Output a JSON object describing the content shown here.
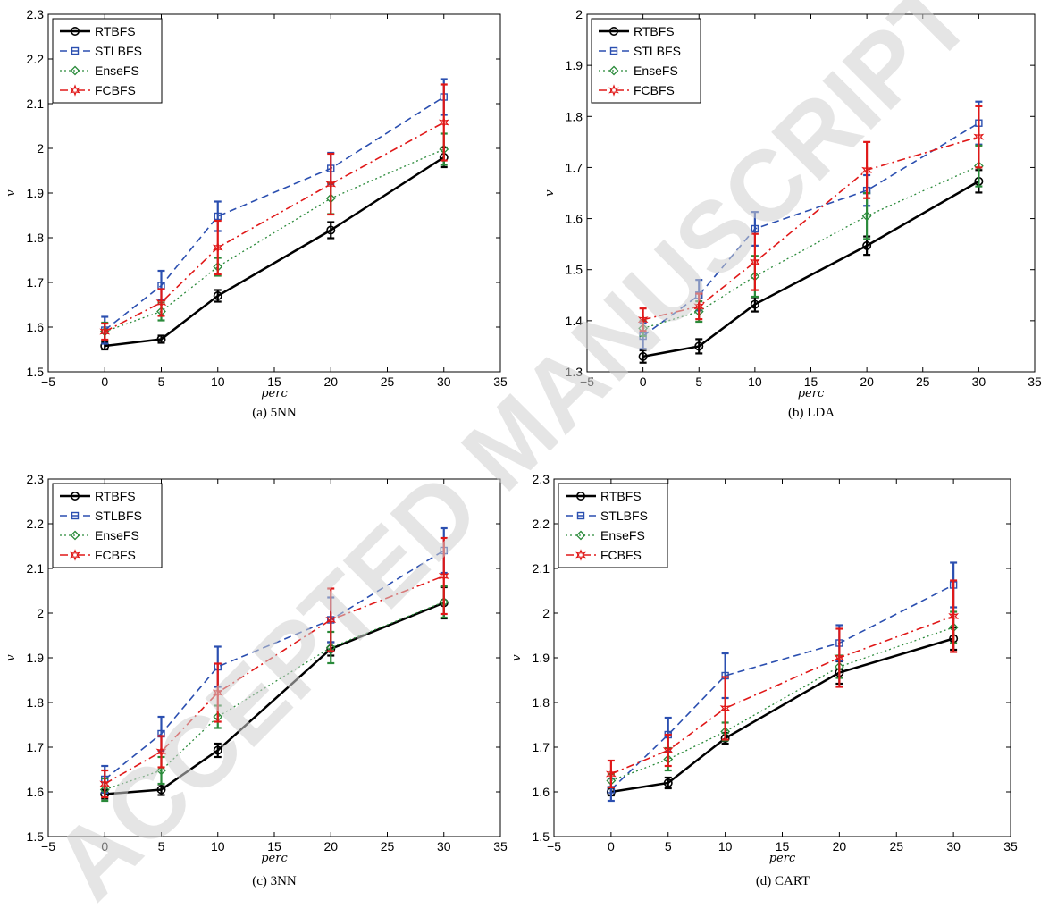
{
  "watermark": "ACCEPTED MANUSCRIPT",
  "styles": {
    "RTBFS": {
      "color": "#000000",
      "dash": "",
      "width": 2.5,
      "marker": "circle"
    },
    "STLBFS": {
      "color": "#2b4fb0",
      "dash": "8,5",
      "width": 1.6,
      "marker": "square"
    },
    "EnseFS": {
      "color": "#2a8a3a",
      "dash": "2,3",
      "width": 1.3,
      "marker": "diamond"
    },
    "FCBFS": {
      "color": "#e01818",
      "dash": "9,4,2,4",
      "width": 1.6,
      "marker": "star"
    }
  },
  "chart_data": [
    {
      "type": "line",
      "caption": "(a) 5NN",
      "xlabel": "perc",
      "ylabel": "v",
      "xlim": [
        -5,
        35
      ],
      "ylim": [
        1.5,
        2.3
      ],
      "xticks": [
        -5,
        0,
        5,
        10,
        15,
        20,
        25,
        30,
        35
      ],
      "yticks": [
        1.5,
        1.6,
        1.7,
        1.8,
        1.9,
        2,
        2.1,
        2.2,
        2.3
      ],
      "legend_position": "top-left",
      "x": [
        0,
        5,
        10,
        20,
        30
      ],
      "series": [
        {
          "name": "RTBFS",
          "values": [
            1.558,
            1.573,
            1.67,
            1.817,
            1.98
          ],
          "err": [
            0.008,
            0.008,
            0.013,
            0.018,
            0.022
          ]
        },
        {
          "name": "STLBFS",
          "values": [
            1.593,
            1.693,
            1.848,
            1.955,
            2.115
          ],
          "err": [
            0.03,
            0.033,
            0.033,
            0.035,
            0.04
          ]
        },
        {
          "name": "EnseFS",
          "values": [
            1.59,
            1.635,
            1.735,
            1.888,
            1.998
          ],
          "err": [
            0.02,
            0.02,
            0.02,
            0.035,
            0.035
          ]
        },
        {
          "name": "FCBFS",
          "values": [
            1.59,
            1.655,
            1.778,
            1.92,
            2.058
          ],
          "err": [
            0.018,
            0.03,
            0.06,
            0.068,
            0.085
          ]
        }
      ]
    },
    {
      "type": "line",
      "caption": "(b) LDA",
      "xlabel": "perc",
      "ylabel": "v",
      "xlim": [
        -5,
        35
      ],
      "ylim": [
        1.3,
        2
      ],
      "xticks": [
        -5,
        0,
        5,
        10,
        15,
        20,
        25,
        30,
        35
      ],
      "yticks": [
        1.3,
        1.4,
        1.5,
        1.6,
        1.7,
        1.8,
        1.9,
        2
      ],
      "legend_position": "top-left",
      "x": [
        0,
        5,
        10,
        20,
        30
      ],
      "series": [
        {
          "name": "RTBFS",
          "values": [
            1.33,
            1.35,
            1.432,
            1.547,
            1.673
          ],
          "err": [
            0.012,
            0.014,
            0.014,
            0.018,
            0.022
          ]
        },
        {
          "name": "STLBFS",
          "values": [
            1.37,
            1.45,
            1.58,
            1.655,
            1.787
          ],
          "err": [
            0.025,
            0.03,
            0.033,
            0.03,
            0.042
          ]
        },
        {
          "name": "EnseFS",
          "values": [
            1.385,
            1.418,
            1.487,
            1.605,
            1.703
          ],
          "err": [
            0.015,
            0.02,
            0.04,
            0.045,
            0.04
          ]
        },
        {
          "name": "FCBFS",
          "values": [
            1.402,
            1.428,
            1.515,
            1.695,
            1.76
          ],
          "err": [
            0.022,
            0.025,
            0.055,
            0.055,
            0.06
          ]
        }
      ]
    },
    {
      "type": "line",
      "caption": "(c) 3NN",
      "xlabel": "perc",
      "ylabel": "v",
      "xlim": [
        -5,
        35
      ],
      "ylim": [
        1.5,
        2.3
      ],
      "xticks": [
        -5,
        0,
        5,
        10,
        15,
        20,
        25,
        30,
        35
      ],
      "yticks": [
        1.5,
        1.6,
        1.7,
        1.8,
        1.9,
        2,
        2.1,
        2.2,
        2.3
      ],
      "legend_position": "top-left",
      "x": [
        0,
        5,
        10,
        20,
        30
      ],
      "series": [
        {
          "name": "RTBFS",
          "values": [
            1.595,
            1.605,
            1.693,
            1.92,
            2.023
          ],
          "err": [
            0.01,
            0.012,
            0.015,
            0.015,
            0.035
          ]
        },
        {
          "name": "STLBFS",
          "values": [
            1.628,
            1.73,
            1.88,
            1.985,
            2.14
          ],
          "err": [
            0.03,
            0.038,
            0.045,
            0.05,
            0.05
          ]
        },
        {
          "name": "EnseFS",
          "values": [
            1.605,
            1.648,
            1.768,
            1.923,
            2.025
          ],
          "err": [
            0.025,
            0.03,
            0.025,
            0.035,
            0.035
          ]
        },
        {
          "name": "FCBFS",
          "values": [
            1.618,
            1.69,
            1.822,
            1.985,
            2.083
          ],
          "err": [
            0.03,
            0.035,
            0.065,
            0.07,
            0.085
          ]
        }
      ]
    },
    {
      "type": "line",
      "caption": "(d) CART",
      "xlabel": "perc",
      "ylabel": "v",
      "xlim": [
        -5,
        35
      ],
      "ylim": [
        1.5,
        2.3
      ],
      "xticks": [
        -5,
        0,
        5,
        10,
        15,
        20,
        25,
        30,
        35
      ],
      "yticks": [
        1.5,
        1.6,
        1.7,
        1.8,
        1.9,
        2,
        2.1,
        2.2,
        2.3
      ],
      "legend_position": "top-left",
      "x": [
        0,
        5,
        10,
        20,
        30
      ],
      "series": [
        {
          "name": "RTBFS",
          "values": [
            1.6,
            1.62,
            1.72,
            1.867,
            1.943
          ],
          "err": [
            0.008,
            0.012,
            0.012,
            0.025,
            0.025
          ]
        },
        {
          "name": "STLBFS",
          "values": [
            1.605,
            1.728,
            1.86,
            1.933,
            2.063
          ],
          "err": [
            0.025,
            0.038,
            0.05,
            0.04,
            0.05
          ]
        },
        {
          "name": "EnseFS",
          "values": [
            1.625,
            1.673,
            1.735,
            1.88,
            1.968
          ],
          "err": [
            0.015,
            0.025,
            0.02,
            0.025,
            0.035
          ]
        },
        {
          "name": "FCBFS",
          "values": [
            1.64,
            1.693,
            1.787,
            1.9,
            1.993
          ],
          "err": [
            0.03,
            0.035,
            0.07,
            0.065,
            0.08
          ]
        }
      ]
    }
  ]
}
